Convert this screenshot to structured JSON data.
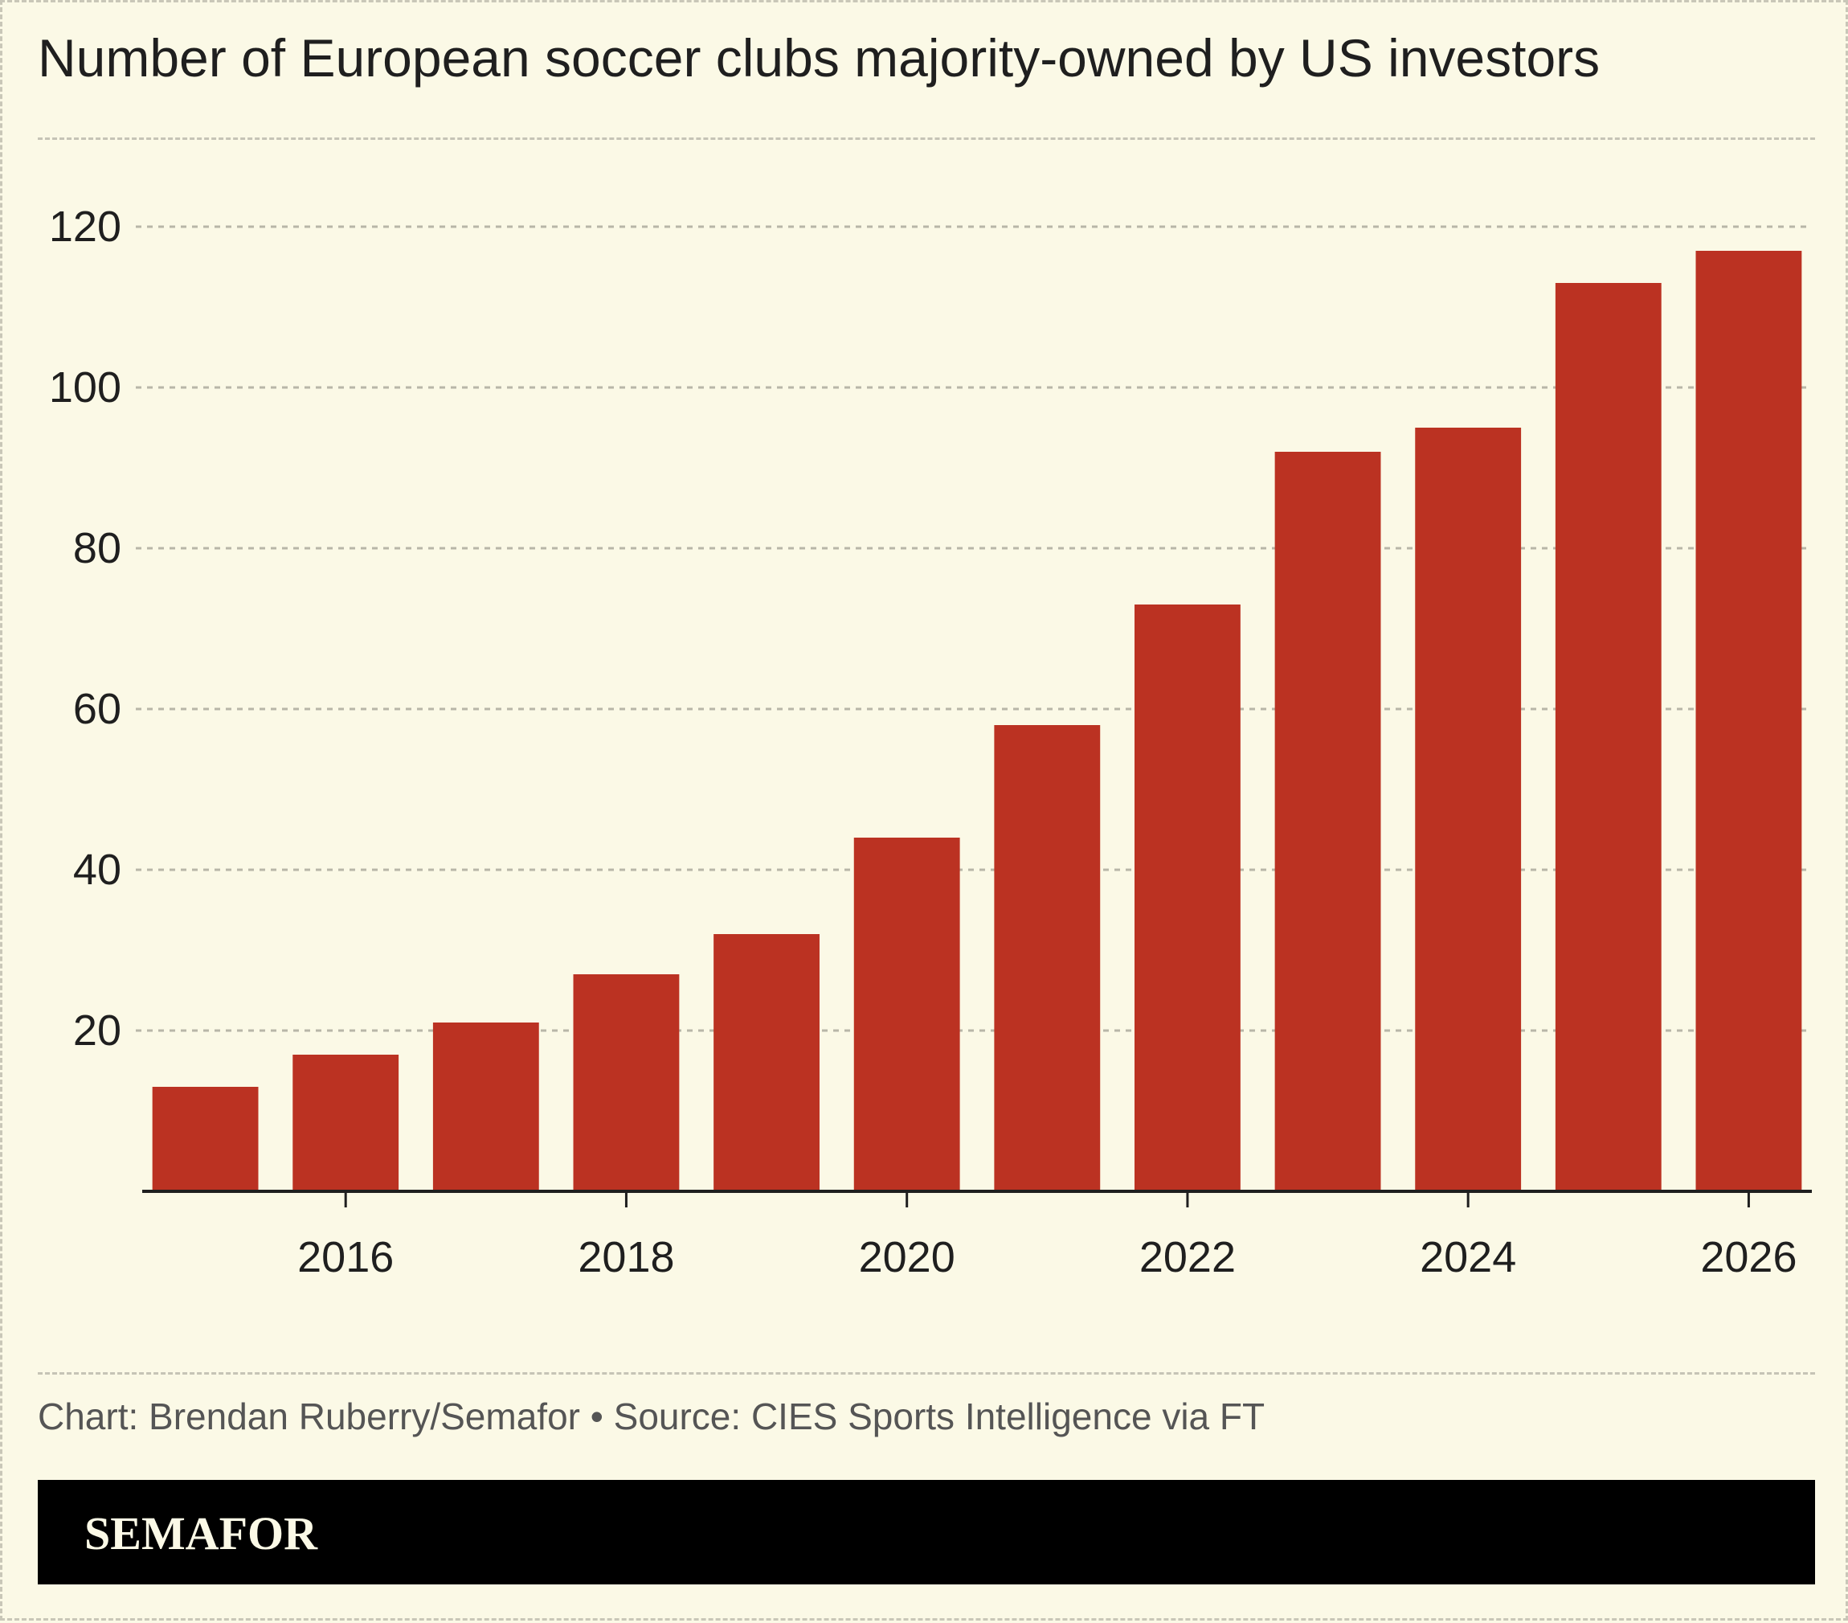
{
  "header": {
    "title": "Number of European soccer clubs majority-owned by US investors"
  },
  "footer": {
    "credit": "Chart: Brendan Ruberry/Semafor • Source: CIES Sports Intelligence via FT",
    "brand": "SEMAFOR"
  },
  "colors": {
    "bar": "#bb3222",
    "background": "#fbf9e6",
    "gridline": "#b8b6a8",
    "axis": "#1f1f1f",
    "brand_bar": "#000000"
  },
  "chart_data": {
    "type": "bar",
    "title": "Number of European soccer clubs majority-owned by US investors",
    "xlabel": "",
    "ylabel": "",
    "x": [
      2015,
      2016,
      2017,
      2018,
      2019,
      2020,
      2021,
      2022,
      2023,
      2024,
      2025,
      2026
    ],
    "values": [
      13,
      17,
      21,
      27,
      32,
      44,
      58,
      73,
      92,
      95,
      113,
      117
    ],
    "xlim": [
      2014.55,
      2026.45
    ],
    "ylim": [
      0,
      120
    ],
    "y_ticks": [
      "20",
      "40",
      "60",
      "80",
      "100",
      "120"
    ],
    "x_ticks": [
      "2016",
      "2018",
      "2020",
      "2022",
      "2024",
      "2026"
    ],
    "grid": "horizontal dashed",
    "legend": "none"
  }
}
